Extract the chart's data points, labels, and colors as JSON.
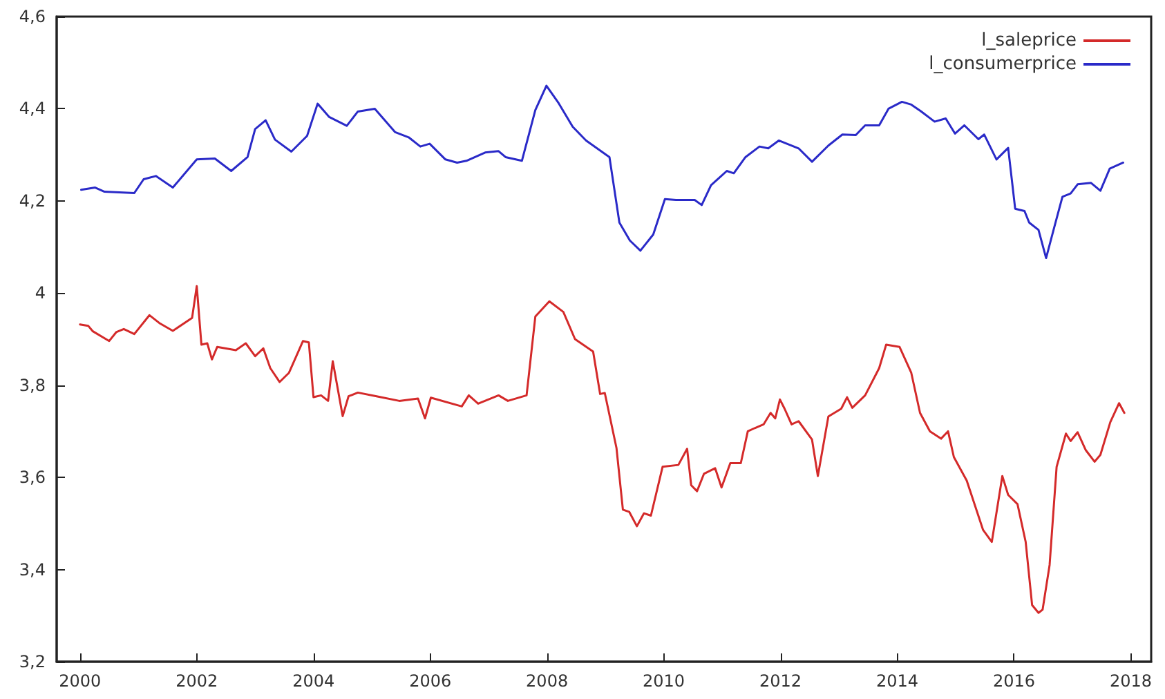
{
  "chart_data": {
    "type": "line",
    "legend": "top right",
    "grid": false,
    "marker": "none",
    "line_style": "solid",
    "xlim": [
      1999.6,
      2018.35
    ],
    "xticks": [
      2000,
      2002,
      2004,
      2006,
      2008,
      2010,
      2012,
      2014,
      2016,
      2018
    ],
    "ylim": [
      3.2,
      4.6
    ],
    "yticks": [
      {
        "value": 3.2,
        "label": "3,2"
      },
      {
        "value": 3.4,
        "label": "3,4"
      },
      {
        "value": 3.6,
        "label": "3,6"
      },
      {
        "value": 3.8,
        "label": "3,8"
      },
      4,
      {
        "value": 4.2,
        "label": "4,2"
      },
      {
        "value": 4.4,
        "label": "4,4"
      },
      {
        "value": 4.6,
        "label": "4,6"
      }
    ],
    "series": [
      {
        "name": "l_saleprice",
        "color": "#d42a2a",
        "x": [
          2000.0,
          2000.14,
          2000.22,
          2000.5,
          2000.62,
          2000.75,
          2000.93,
          2001.19,
          2001.37,
          2001.59,
          2001.92,
          2002.0,
          2002.08,
          2002.18,
          2002.26,
          2002.35,
          2002.67,
          2002.84,
          2003.0,
          2003.14,
          2003.26,
          2003.42,
          2003.58,
          2003.82,
          2003.92,
          2004.0,
          2004.13,
          2004.25,
          2004.33,
          2004.5,
          2004.6,
          2004.76,
          2005.08,
          2005.47,
          2005.79,
          2005.91,
          2006.01,
          2006.54,
          2006.66,
          2006.82,
          2007.17,
          2007.33,
          2007.65,
          2007.8,
          2008.04,
          2008.28,
          2008.48,
          2008.79,
          2008.91,
          2008.99,
          2009.19,
          2009.3,
          2009.41,
          2009.54,
          2009.66,
          2009.78,
          2009.98,
          2010.25,
          2010.4,
          2010.47,
          2010.57,
          2010.69,
          2010.88,
          2010.99,
          2011.14,
          2011.32,
          2011.44,
          2011.56,
          2011.71,
          2011.83,
          2011.91,
          2011.99,
          2012.07,
          2012.19,
          2012.31,
          2012.54,
          2012.64,
          2012.82,
          2013.04,
          2013.14,
          2013.23,
          2013.45,
          2013.69,
          2013.81,
          2014.04,
          2014.24,
          2014.39,
          2014.56,
          2014.75,
          2014.87,
          2014.97,
          2015.19,
          2015.47,
          2015.62,
          2015.8,
          2015.9,
          2016.06,
          2016.2,
          2016.31,
          2016.42,
          2016.49,
          2016.61,
          2016.73,
          2016.89,
          2016.97,
          2017.09,
          2017.23,
          2017.38,
          2017.48,
          2017.65,
          2017.8,
          2017.89
        ],
        "values": [
          3.932,
          3.929,
          3.917,
          3.896,
          3.915,
          3.922,
          3.911,
          3.952,
          3.934,
          3.918,
          3.946,
          4.015,
          3.888,
          3.891,
          3.856,
          3.883,
          3.876,
          3.891,
          3.863,
          3.88,
          3.837,
          3.807,
          3.827,
          3.896,
          3.893,
          3.774,
          3.778,
          3.766,
          3.852,
          3.733,
          3.776,
          3.784,
          3.776,
          3.766,
          3.771,
          3.728,
          3.773,
          3.754,
          3.778,
          3.76,
          3.778,
          3.766,
          3.778,
          3.949,
          3.982,
          3.959,
          3.9,
          3.873,
          3.781,
          3.783,
          3.664,
          3.53,
          3.525,
          3.494,
          3.522,
          3.517,
          3.623,
          3.627,
          3.662,
          3.583,
          3.57,
          3.608,
          3.62,
          3.578,
          3.631,
          3.631,
          3.7,
          3.707,
          3.715,
          3.74,
          3.728,
          3.769,
          3.749,
          3.715,
          3.722,
          3.682,
          3.603,
          3.732,
          3.749,
          3.774,
          3.751,
          3.778,
          3.837,
          3.888,
          3.883,
          3.827,
          3.74,
          3.7,
          3.684,
          3.7,
          3.644,
          3.593,
          3.486,
          3.46,
          3.603,
          3.562,
          3.542,
          3.46,
          3.323,
          3.306,
          3.313,
          3.41,
          3.623,
          3.695,
          3.679,
          3.698,
          3.659,
          3.634,
          3.649,
          3.72,
          3.761,
          3.74
        ]
      },
      {
        "name": "l_consumerprice",
        "color": "#2a2ac8",
        "x": [
          2000.02,
          2000.26,
          2000.42,
          2000.93,
          2001.09,
          2001.3,
          2001.59,
          2002.0,
          2002.31,
          2002.59,
          2002.87,
          2003.0,
          2003.18,
          2003.34,
          2003.62,
          2003.89,
          2004.07,
          2004.27,
          2004.57,
          2004.76,
          2005.05,
          2005.4,
          2005.63,
          2005.83,
          2005.99,
          2006.26,
          2006.46,
          2006.62,
          2006.94,
          2007.17,
          2007.29,
          2007.57,
          2007.8,
          2007.99,
          2008.2,
          2008.44,
          2008.67,
          2009.07,
          2009.24,
          2009.42,
          2009.6,
          2009.82,
          2010.02,
          2010.21,
          2010.53,
          2010.65,
          2010.81,
          2011.08,
          2011.2,
          2011.4,
          2011.64,
          2011.79,
          2011.97,
          2012.31,
          2012.54,
          2012.82,
          2013.06,
          2013.29,
          2013.45,
          2013.69,
          2013.85,
          2014.08,
          2014.24,
          2014.4,
          2014.64,
          2014.83,
          2014.99,
          2015.15,
          2015.39,
          2015.49,
          2015.7,
          2015.9,
          2016.02,
          2016.18,
          2016.26,
          2016.42,
          2016.55,
          2016.69,
          2016.83,
          2016.97,
          2017.09,
          2017.32,
          2017.48,
          2017.64,
          2017.87
        ],
        "values": [
          4.224,
          4.229,
          4.22,
          4.217,
          4.247,
          4.254,
          4.229,
          4.29,
          4.292,
          4.265,
          4.295,
          4.356,
          4.375,
          4.333,
          4.307,
          4.341,
          4.411,
          4.382,
          4.363,
          4.394,
          4.4,
          4.349,
          4.338,
          4.318,
          4.324,
          4.29,
          4.283,
          4.287,
          4.305,
          4.308,
          4.295,
          4.287,
          4.397,
          4.45,
          4.412,
          4.361,
          4.331,
          4.295,
          4.153,
          4.114,
          4.092,
          4.127,
          4.204,
          4.202,
          4.202,
          4.191,
          4.234,
          4.265,
          4.26,
          4.295,
          4.318,
          4.314,
          4.331,
          4.314,
          4.285,
          4.32,
          4.344,
          4.343,
          4.364,
          4.364,
          4.4,
          4.415,
          4.409,
          4.395,
          4.372,
          4.379,
          4.346,
          4.364,
          4.334,
          4.344,
          4.29,
          4.315,
          4.183,
          4.178,
          4.153,
          4.137,
          4.076,
          4.143,
          4.209,
          4.216,
          4.236,
          4.239,
          4.222,
          4.27,
          4.283
        ]
      }
    ]
  }
}
